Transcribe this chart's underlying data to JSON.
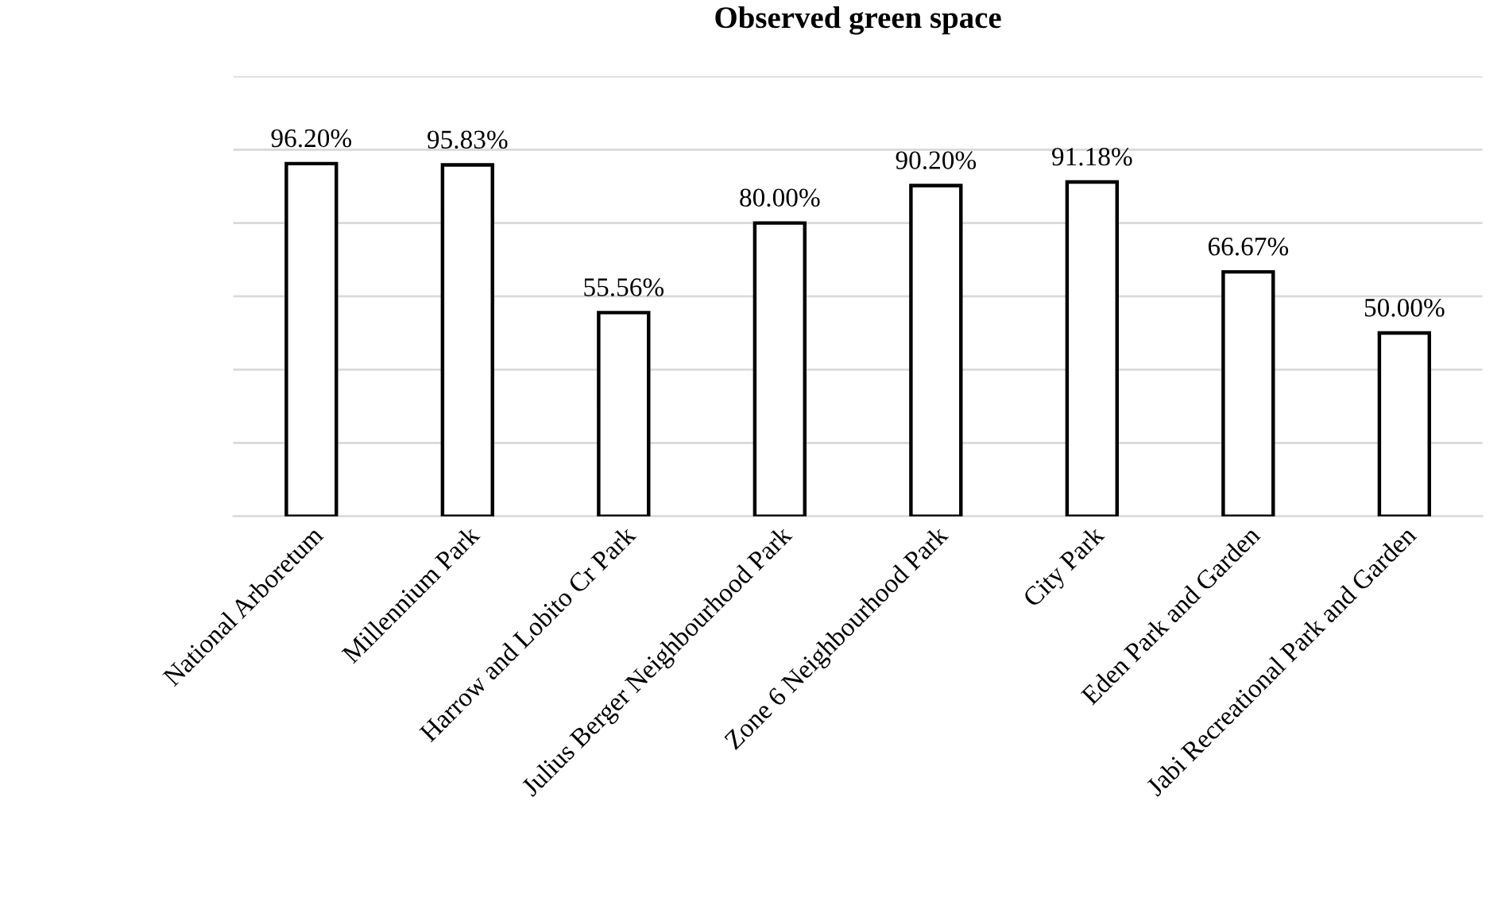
{
  "chart_data": {
    "type": "bar",
    "title": "Observed green space",
    "categories": [
      "National Arboretum",
      "Millennium Park",
      "Harrow and Lobito Cr Park",
      "Julius Berger Neighbourhood Park",
      "Zone 6 Neighbourhood Park",
      "City Park",
      "Eden Park and Garden",
      "Jabi Recreational Park and Garden"
    ],
    "values": [
      96.2,
      95.83,
      55.56,
      80.0,
      90.2,
      91.18,
      66.67,
      50.0
    ],
    "value_labels": [
      "96.20%",
      "95.83%",
      "55.56%",
      "80.00%",
      "90.20%",
      "91.18%",
      "66.67%",
      "50.00%"
    ],
    "color": "#ffffff",
    "ylim": [
      0,
      120
    ],
    "yticks": [
      {
        "value": 0,
        "label": null
      },
      {
        "value": 20,
        "label": null
      },
      {
        "value": 40,
        "label": null
      },
      {
        "value": 60,
        "label": null
      },
      {
        "value": 80,
        "label": null
      },
      {
        "value": 100,
        "label": null
      },
      {
        "value": 120,
        "label": null
      }
    ],
    "grid": "y",
    "tick_labels": "x"
  }
}
